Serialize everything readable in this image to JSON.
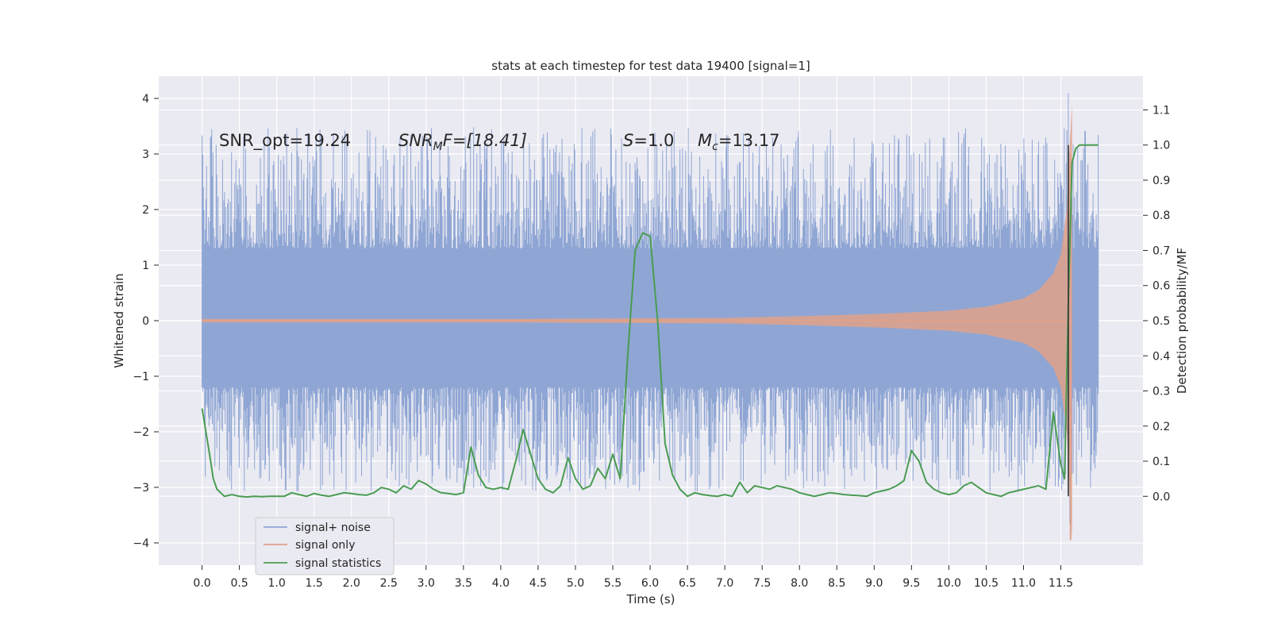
{
  "chart_data": {
    "type": "line",
    "title": "stats at each timestep for test data 19400 [signal=1]",
    "xlabel": "Time (s)",
    "ylabel": "Whitened strain",
    "ylabel_right": "Detection probability/MF",
    "xlim": [
      -0.58,
      12.6
    ],
    "ylim": [
      -4.4,
      4.4
    ],
    "ylim_right": [
      -0.196,
      1.196
    ],
    "x_ticks": [
      "0.0",
      "0.5",
      "1.0",
      "1.5",
      "2.0",
      "2.5",
      "3.0",
      "3.5",
      "4.0",
      "4.5",
      "5.0",
      "5.5",
      "6.0",
      "6.5",
      "7.0",
      "7.5",
      "8.0",
      "8.5",
      "9.0",
      "9.5",
      "10.0",
      "10.5",
      "11.0",
      "11.5"
    ],
    "y_ticks_left": [
      "4",
      "3",
      "2",
      "1",
      "0",
      "−1",
      "−2",
      "−3",
      "−4"
    ],
    "y_ticks_right": [
      "1.1",
      "1.0",
      "0.9",
      "0.8",
      "0.7",
      "0.6",
      "0.5",
      "0.4",
      "0.3",
      "0.2",
      "0.1",
      "0.0"
    ],
    "grid": true,
    "legend_position": "lower-left",
    "annotations": {
      "snr_opt": "SNR_opt=19.24",
      "snr_mf_base": "SNR",
      "snr_mf_sub": "M",
      "snr_mf_rest": "F=[18.41]",
      "s_base": "S",
      "s_rest": "=1.0",
      "mc_base": "M",
      "mc_sub": "c",
      "mc_rest": "=13.17"
    },
    "series": [
      {
        "name": "signal+ noise",
        "color": "#8fa6d4",
        "axis": "left",
        "x_range": [
          0.0,
          12.0
        ],
        "band": [
          -1.2,
          1.3
        ],
        "spike_range": [
          -3.6,
          4.1
        ],
        "peak_max": 4.1,
        "peak_min": -3.65
      },
      {
        "name": "signal only",
        "color": "#e0a18a",
        "axis": "left",
        "x_range": [
          0.0,
          11.65
        ],
        "envelope": {
          "x": [
            0.0,
            4.0,
            7.0,
            8.0,
            9.0,
            10.0,
            10.5,
            11.0,
            11.2,
            11.4,
            11.5,
            11.58,
            11.62,
            11.65
          ],
          "amp": [
            0.03,
            0.03,
            0.05,
            0.08,
            0.12,
            0.18,
            0.25,
            0.4,
            0.55,
            0.85,
            1.2,
            2.0,
            3.2,
            3.9
          ]
        }
      },
      {
        "name": "signal statistics",
        "color": "#4a9c52",
        "axis": "right",
        "x": [
          0.0,
          0.1,
          0.15,
          0.2,
          0.3,
          0.4,
          0.5,
          0.6,
          0.7,
          0.8,
          0.9,
          1.0,
          1.1,
          1.2,
          1.3,
          1.4,
          1.5,
          1.6,
          1.7,
          1.8,
          1.9,
          2.0,
          2.1,
          2.2,
          2.3,
          2.4,
          2.5,
          2.6,
          2.7,
          2.8,
          2.9,
          3.0,
          3.1,
          3.2,
          3.3,
          3.4,
          3.5,
          3.6,
          3.7,
          3.8,
          3.9,
          4.0,
          4.1,
          4.2,
          4.3,
          4.4,
          4.5,
          4.6,
          4.7,
          4.8,
          4.9,
          5.0,
          5.1,
          5.2,
          5.3,
          5.4,
          5.5,
          5.6,
          5.7,
          5.8,
          5.9,
          6.0,
          6.1,
          6.2,
          6.3,
          6.4,
          6.5,
          6.6,
          6.7,
          6.8,
          6.9,
          7.0,
          7.1,
          7.2,
          7.3,
          7.4,
          7.5,
          7.6,
          7.7,
          7.8,
          7.9,
          8.0,
          8.1,
          8.2,
          8.3,
          8.4,
          8.5,
          8.6,
          8.7,
          8.8,
          8.9,
          9.0,
          9.1,
          9.2,
          9.3,
          9.4,
          9.5,
          9.6,
          9.7,
          9.8,
          9.9,
          10.0,
          10.1,
          10.2,
          10.3,
          10.4,
          10.5,
          10.6,
          10.7,
          10.8,
          10.9,
          11.0,
          11.1,
          11.2,
          11.3,
          11.4,
          11.5,
          11.55,
          11.6,
          11.65,
          11.7,
          11.75,
          11.8,
          11.85,
          11.9,
          12.0
        ],
        "values": [
          0.25,
          0.12,
          0.05,
          0.02,
          0.0,
          0.005,
          0.0,
          -0.002,
          0.0,
          -0.001,
          0.0,
          0.0,
          0.0,
          0.01,
          0.005,
          0.0,
          0.008,
          0.003,
          0.0,
          0.005,
          0.01,
          0.008,
          0.005,
          0.003,
          0.01,
          0.025,
          0.02,
          0.01,
          0.03,
          0.02,
          0.045,
          0.035,
          0.02,
          0.01,
          0.008,
          0.005,
          0.01,
          0.14,
          0.06,
          0.025,
          0.02,
          0.025,
          0.02,
          0.1,
          0.19,
          0.12,
          0.05,
          0.02,
          0.01,
          0.03,
          0.11,
          0.05,
          0.02,
          0.03,
          0.08,
          0.05,
          0.12,
          0.05,
          0.4,
          0.7,
          0.75,
          0.74,
          0.5,
          0.15,
          0.06,
          0.02,
          0.0,
          0.01,
          0.005,
          0.002,
          0.0,
          0.005,
          0.0,
          0.04,
          0.01,
          0.03,
          0.025,
          0.02,
          0.03,
          0.025,
          0.02,
          0.01,
          0.005,
          0.0,
          0.005,
          0.01,
          0.008,
          0.005,
          0.003,
          0.002,
          0.0,
          0.01,
          0.015,
          0.02,
          0.03,
          0.045,
          0.13,
          0.1,
          0.04,
          0.02,
          0.01,
          0.005,
          0.01,
          0.03,
          0.04,
          0.025,
          0.01,
          0.005,
          0.0,
          0.01,
          0.015,
          0.02,
          0.025,
          0.03,
          0.02,
          0.24,
          0.09,
          0.05,
          0.55,
          0.95,
          0.99,
          1.0,
          1.0,
          1.0,
          1.0,
          1.0
        ]
      }
    ]
  }
}
